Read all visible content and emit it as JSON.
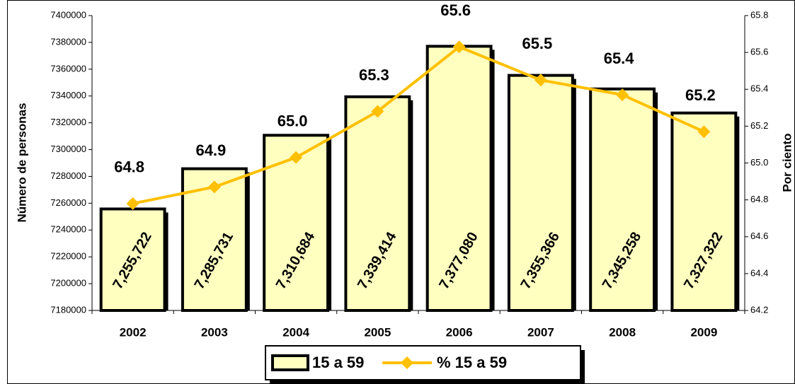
{
  "chart_data": {
    "type": "bar",
    "categories": [
      "2002",
      "2003",
      "2004",
      "2005",
      "2006",
      "2007",
      "2008",
      "2009"
    ],
    "y_label": "Número de personas",
    "y2_label": "Por ciento",
    "ylim": [
      7180000,
      7400000
    ],
    "yticks": [
      7180000,
      7200000,
      7220000,
      7240000,
      7260000,
      7280000,
      7300000,
      7320000,
      7340000,
      7360000,
      7380000,
      7400000
    ],
    "y2lim": [
      64.2,
      65.8
    ],
    "y2ticks": [
      64.2,
      64.4,
      64.6,
      64.8,
      {
        "value": 65,
        "label": "65.0"
      },
      65.2,
      65.4,
      65.6,
      65.8
    ],
    "series": [
      {
        "name": "15 a 59",
        "type": "bar",
        "color": "#ffffc0",
        "values": [
          7255722,
          7285731,
          7310684,
          7339414,
          7377080,
          7355366,
          7345258,
          7327322
        ],
        "value_labels": [
          "7,255,722",
          "7,285,731",
          "7,310,684",
          "7,339,414",
          "7,377,080",
          "7,355,366",
          "7,345,258",
          "7,327,322"
        ]
      },
      {
        "name": "% 15 a 59",
        "type": "line",
        "axis": "y2",
        "color": "#ffc000",
        "values": [
          64.78,
          64.87,
          65.03,
          65.28,
          65.63,
          65.45,
          65.37,
          65.17
        ],
        "value_labels": [
          "64.8",
          "64.9",
          "65.0",
          "65.3",
          "65.6",
          "65.5",
          "65.4",
          "65.2"
        ]
      }
    ]
  }
}
